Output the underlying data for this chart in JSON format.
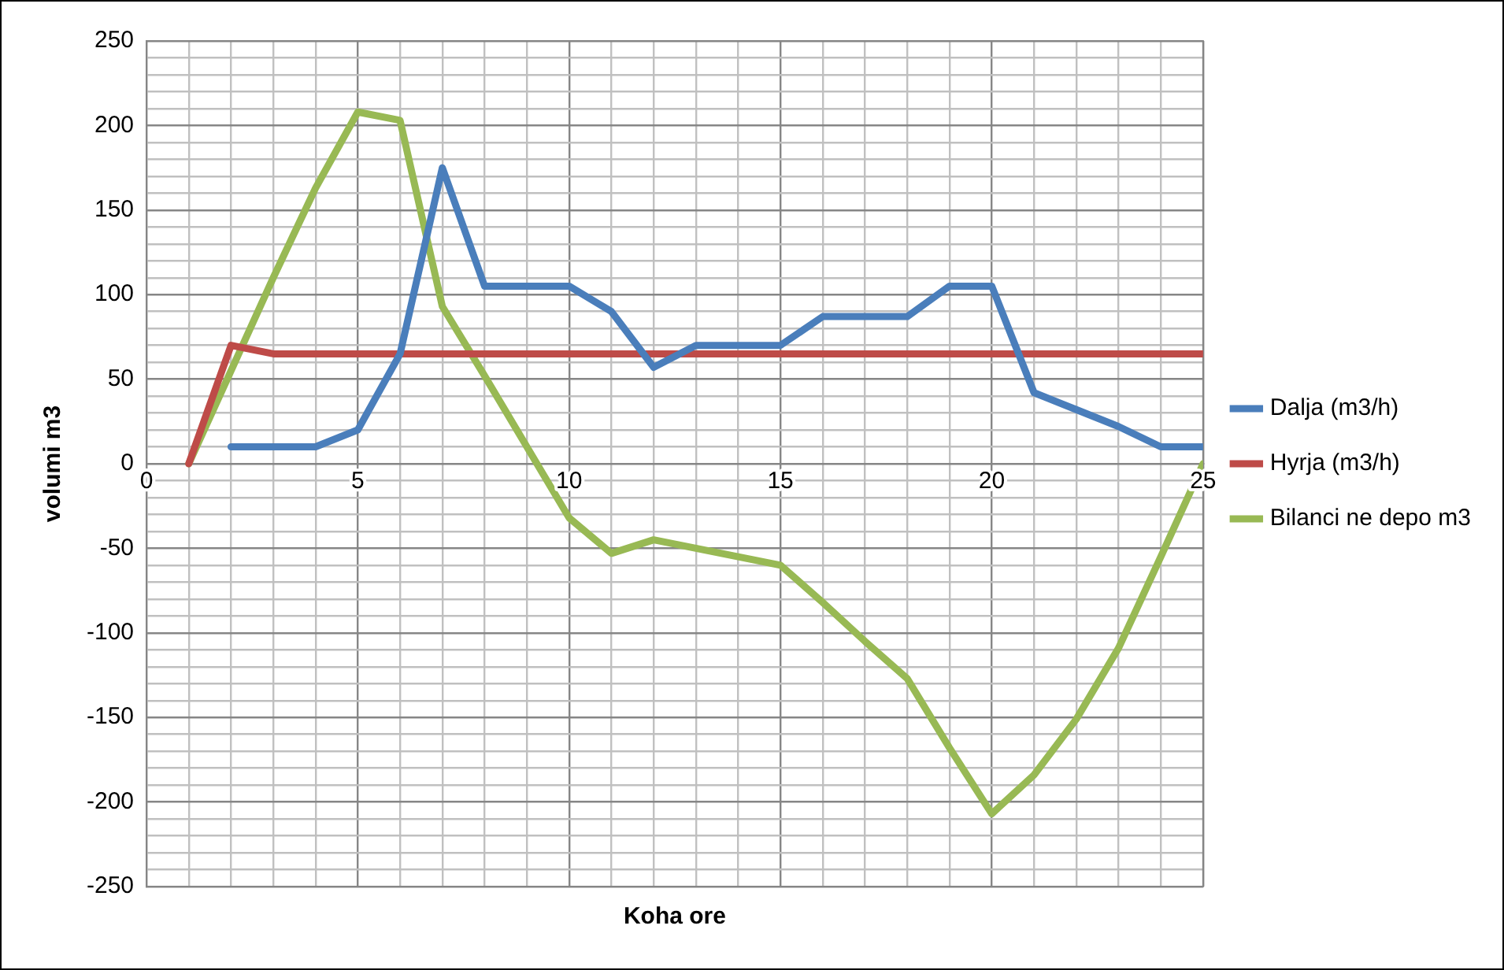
{
  "chart_data": {
    "type": "line",
    "xlabel": "Koha ore",
    "ylabel": "volumi m3",
    "xlim": [
      0,
      25
    ],
    "ylim": [
      -250,
      250
    ],
    "xticks": [
      0,
      {
        "value": 1,
        "label": null
      },
      {
        "value": 2,
        "label": null
      },
      {
        "value": 3,
        "label": null
      },
      {
        "value": 4,
        "label": null
      },
      5,
      {
        "value": 6,
        "label": null
      },
      {
        "value": 7,
        "label": null
      },
      {
        "value": 8,
        "label": null
      },
      {
        "value": 9,
        "label": null
      },
      10,
      {
        "value": 11,
        "label": null
      },
      {
        "value": 12,
        "label": null
      },
      {
        "value": 13,
        "label": null
      },
      {
        "value": 14,
        "label": null
      },
      15,
      {
        "value": 16,
        "label": null
      },
      {
        "value": 17,
        "label": null
      },
      {
        "value": 18,
        "label": null
      },
      {
        "value": 19,
        "label": null
      },
      20,
      {
        "value": 21,
        "label": null
      },
      {
        "value": 22,
        "label": null
      },
      {
        "value": 23,
        "label": null
      },
      {
        "value": 24,
        "label": null
      },
      25
    ],
    "yticks": [
      -250,
      {
        "value": -240,
        "label": null
      },
      {
        "value": -230,
        "label": null
      },
      {
        "value": -220,
        "label": null
      },
      {
        "value": -210,
        "label": null
      },
      -200,
      {
        "value": -190,
        "label": null
      },
      {
        "value": -180,
        "label": null
      },
      {
        "value": -170,
        "label": null
      },
      {
        "value": -160,
        "label": null
      },
      -150,
      {
        "value": -140,
        "label": null
      },
      {
        "value": -130,
        "label": null
      },
      {
        "value": -120,
        "label": null
      },
      {
        "value": -110,
        "label": null
      },
      -100,
      {
        "value": -90,
        "label": null
      },
      {
        "value": -80,
        "label": null
      },
      {
        "value": -70,
        "label": null
      },
      {
        "value": -60,
        "label": null
      },
      -50,
      {
        "value": -40,
        "label": null
      },
      {
        "value": -30,
        "label": null
      },
      {
        "value": -20,
        "label": null
      },
      {
        "value": -10,
        "label": null
      },
      0,
      {
        "value": 10,
        "label": null
      },
      {
        "value": 20,
        "label": null
      },
      {
        "value": 30,
        "label": null
      },
      {
        "value": 40,
        "label": null
      },
      50,
      {
        "value": 60,
        "label": null
      },
      {
        "value": 70,
        "label": null
      },
      {
        "value": 80,
        "label": null
      },
      {
        "value": 90,
        "label": null
      },
      100,
      {
        "value": 110,
        "label": null
      },
      {
        "value": 120,
        "label": null
      },
      {
        "value": 130,
        "label": null
      },
      {
        "value": 140,
        "label": null
      },
      150,
      {
        "value": 160,
        "label": null
      },
      {
        "value": 170,
        "label": null
      },
      {
        "value": 180,
        "label": null
      },
      {
        "value": 190,
        "label": null
      },
      200,
      {
        "value": 210,
        "label": null
      },
      {
        "value": 220,
        "label": null
      },
      {
        "value": 230,
        "label": null
      },
      {
        "value": 240,
        "label": null
      },
      250
    ],
    "grid": true,
    "legend": "right",
    "marker": "none",
    "line_style": "solid",
    "series": [
      {
        "name": "Dalja (m3/h)",
        "color": "#4a7ebb",
        "x": [
          2,
          3,
          4,
          5,
          6,
          7,
          8,
          9,
          10,
          11,
          12,
          13,
          14,
          15,
          16,
          17,
          18,
          19,
          20,
          21,
          22,
          23,
          24,
          25
        ],
        "values": [
          10,
          10,
          10,
          20,
          65,
          175,
          105,
          105,
          105,
          90,
          57,
          70,
          70,
          70,
          87,
          87,
          87,
          105,
          105,
          42,
          32,
          22,
          10,
          10
        ]
      },
      {
        "name": "Hyrja (m3/h)",
        "color": "#be4b48",
        "x": [
          1,
          2,
          3,
          4,
          5,
          6,
          7,
          8,
          9,
          10,
          11,
          12,
          13,
          14,
          15,
          16,
          17,
          18,
          19,
          20,
          21,
          22,
          23,
          24,
          25
        ],
        "values": [
          0,
          70,
          65,
          65,
          65,
          65,
          65,
          65,
          65,
          65,
          65,
          65,
          65,
          65,
          65,
          65,
          65,
          65,
          65,
          65,
          65,
          65,
          65,
          65,
          65
        ]
      },
      {
        "name": "Bilanci ne depo m3",
        "color": "#98b954",
        "x": [
          1,
          2,
          3,
          4,
          5,
          6,
          7,
          8,
          9,
          10,
          11,
          12,
          13,
          14,
          15,
          16,
          17,
          18,
          19,
          20,
          21,
          22,
          23,
          24,
          25
        ],
        "values": [
          0,
          55,
          110,
          163,
          208,
          203,
          93,
          52,
          10,
          -32,
          -53,
          -45,
          -50,
          -55,
          -60,
          -82,
          -105,
          -127,
          -168,
          -207,
          -184,
          -151,
          -109,
          -55,
          0
        ]
      }
    ]
  }
}
